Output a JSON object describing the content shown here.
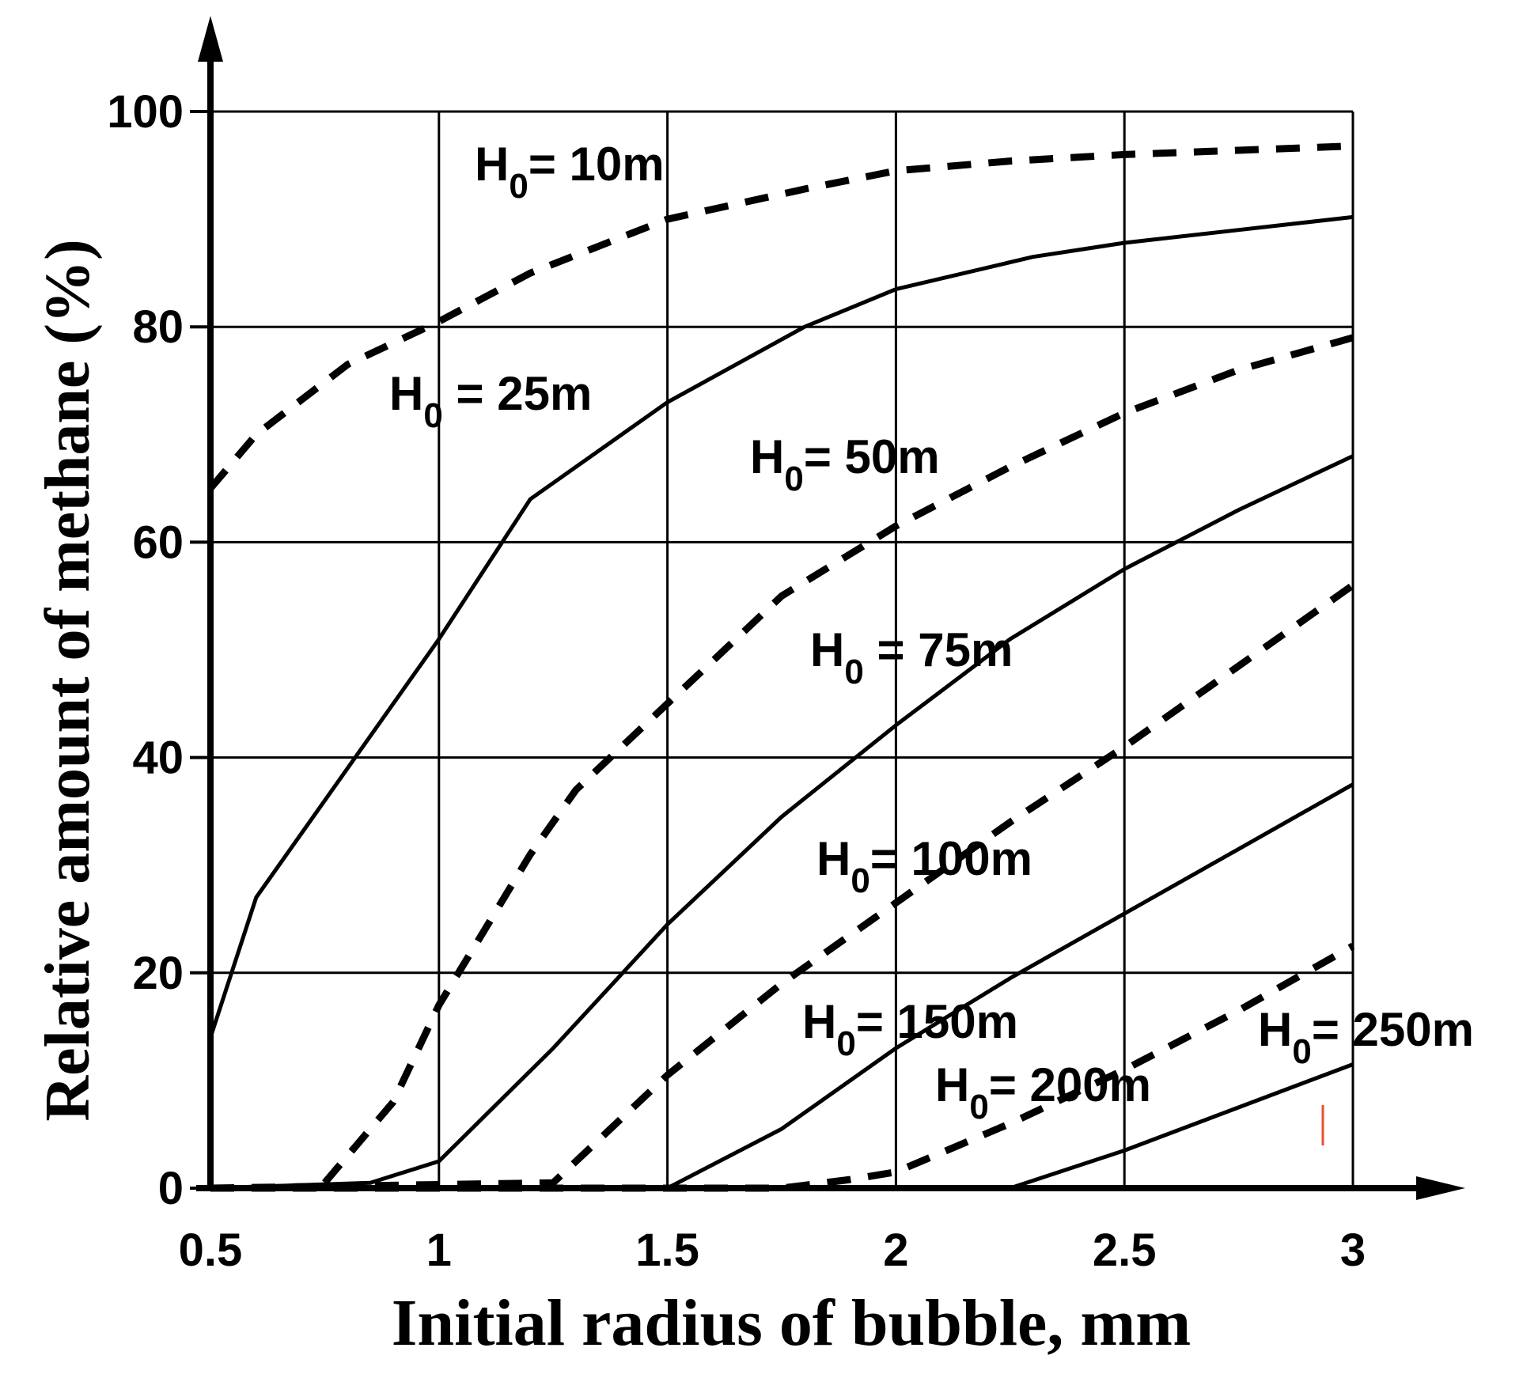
{
  "chart_data": {
    "type": "line",
    "xlabel": "Initial radius of bubble, mm",
    "ylabel": "Relative amount of methane  (%)",
    "xlim": [
      0.5,
      3
    ],
    "ylim": [
      0,
      100
    ],
    "x_ticks": [
      "0.5",
      "1",
      "1.5",
      "2",
      "2.5",
      "3"
    ],
    "y_ticks": [
      "0",
      "20",
      "40",
      "60",
      "80",
      "100"
    ],
    "grid": true,
    "colors": {
      "line": "#000000",
      "grid": "#000000",
      "marker": "#e8502a"
    },
    "series": [
      {
        "name": "H0= 10m",
        "label_main": "H",
        "label_sub": "0",
        "label_rest": "= 10m",
        "style": "dashed",
        "x": [
          0.5,
          0.6,
          0.8,
          1.0,
          1.2,
          1.5,
          1.8,
          2.0,
          2.25,
          2.5,
          2.75,
          3.0
        ],
        "y": [
          65,
          70,
          76.5,
          80.5,
          85,
          90,
          92.8,
          94.5,
          95.4,
          96,
          96.4,
          96.8
        ]
      },
      {
        "name": "H0 = 25m",
        "label_main": "H",
        "label_sub": "0",
        "label_rest": " = 25m",
        "style": "solid",
        "x": [
          0.5,
          0.6,
          0.8,
          1.0,
          1.2,
          1.4,
          1.5,
          1.8,
          2.0,
          2.3,
          2.5,
          2.75,
          3.0
        ],
        "y": [
          14,
          27,
          39,
          51,
          64,
          70,
          73,
          80,
          83.5,
          86.5,
          87.8,
          89,
          90.2
        ]
      },
      {
        "name": "H0= 50m",
        "label_main": "H",
        "label_sub": "0",
        "label_rest": "= 50m",
        "style": "dashed",
        "x": [
          0.75,
          0.9,
          1.0,
          1.1,
          1.2,
          1.3,
          1.5,
          1.75,
          2.0,
          2.25,
          2.5,
          2.75,
          3.0
        ],
        "y": [
          0.5,
          8,
          17,
          24,
          31,
          37,
          45,
          55,
          61.5,
          67,
          72,
          76,
          79
        ]
      },
      {
        "name": "H0 = 75m",
        "label_main": "H",
        "label_sub": "0",
        "label_rest": " = 75m",
        "style": "solid",
        "x": [
          0.5,
          0.85,
          1.0,
          1.25,
          1.5,
          1.75,
          2.0,
          2.25,
          2.5,
          2.75,
          3.0
        ],
        "y": [
          0,
          0.5,
          2.5,
          13,
          24.5,
          34.5,
          43,
          51,
          57.5,
          63,
          68
        ]
      },
      {
        "name": "H0= 100m",
        "label_main": "H",
        "label_sub": "0",
        "label_rest": "= 100m",
        "style": "dashed",
        "x": [
          0.5,
          1.25,
          1.35,
          1.5,
          1.75,
          2.0,
          2.25,
          2.5,
          2.75,
          3.0
        ],
        "y": [
          0,
          0.5,
          4.5,
          10.5,
          19,
          26.5,
          34,
          41,
          48.5,
          56
        ]
      },
      {
        "name": "H0= 150m",
        "label_main": "H",
        "label_sub": "0",
        "label_rest": "= 150m",
        "style": "solid",
        "x": [
          0.5,
          1.5,
          1.75,
          2.0,
          2.25,
          2.5,
          2.75,
          3.0
        ],
        "y": [
          0,
          0,
          5.5,
          13,
          19.5,
          25.5,
          31.5,
          37.5
        ]
      },
      {
        "name": "H0= 200m",
        "label_main": "H",
        "label_sub": "0",
        "label_rest": "= 200m",
        "style": "dashed",
        "x": [
          0.5,
          1.75,
          1.9,
          2.0,
          2.25,
          2.5,
          2.75,
          3.0
        ],
        "y": [
          0,
          0,
          0.8,
          1.5,
          6,
          11,
          16.5,
          22.5
        ]
      },
      {
        "name": "H0= 250m",
        "label_main": "H",
        "label_sub": "0",
        "label_rest": "= 250m",
        "style": "solid",
        "x": [
          0.5,
          2.25,
          2.5,
          2.75,
          3.0
        ],
        "y": [
          0,
          0,
          3.5,
          7.5,
          11.5
        ]
      }
    ]
  }
}
